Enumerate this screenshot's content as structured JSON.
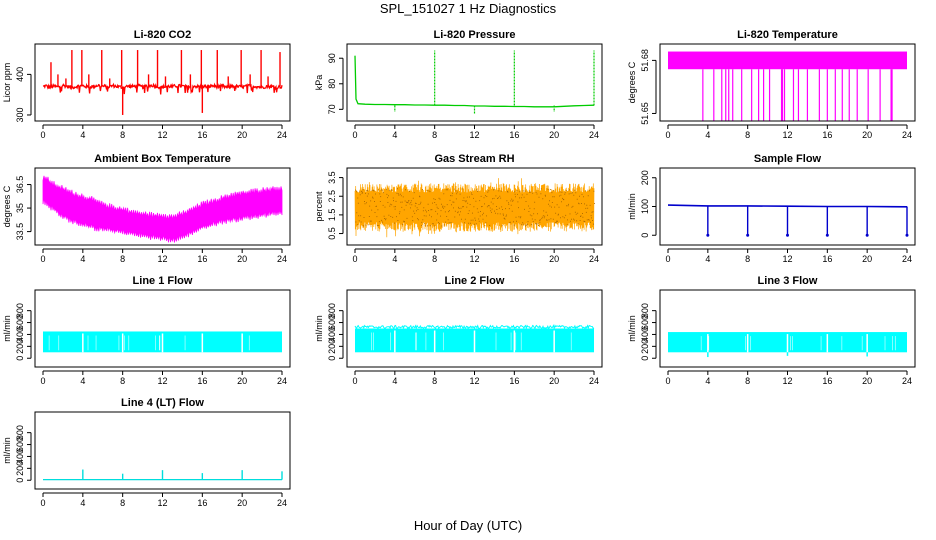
{
  "figure": {
    "title": "SPL_151027  1 Hz Diagnostics",
    "xlabel": "Hour of Day (UTC)"
  },
  "chart_data": [
    {
      "id": "co2",
      "type": "line",
      "title": "Li-820 CO2",
      "ylabel": "Licor ppm",
      "color": "#ff0000",
      "xlim": [
        0,
        24
      ],
      "xticks": [
        0,
        4,
        8,
        12,
        16,
        20,
        24
      ],
      "ylim": [
        295,
        465
      ],
      "yticks": [
        300,
        400
      ],
      "series": [
        {
          "x": [
            0,
            0.3,
            0.6,
            1,
            1.5,
            2,
            2.5,
            3,
            3.5,
            4,
            4.5,
            5,
            5.5,
            6,
            6.5,
            7,
            7.5,
            8,
            8.5,
            9,
            9.5,
            10,
            10.5,
            11,
            11.5,
            12,
            12.5,
            13,
            13.5,
            14,
            14.5,
            15,
            15.5,
            16,
            16.5,
            17,
            17.5,
            18,
            18.5,
            19,
            19.5,
            20,
            20.5,
            21,
            21.5,
            22,
            22.5,
            23,
            23.5,
            24
          ],
          "y": [
            370,
            372,
            368,
            371,
            369,
            373,
            370,
            368,
            371,
            372,
            369,
            370,
            373,
            371,
            369,
            372,
            370,
            368,
            371,
            370,
            372,
            369,
            371,
            373,
            370,
            368,
            371,
            370,
            372,
            371,
            369,
            372,
            370,
            371,
            369,
            372,
            370,
            371,
            368,
            372,
            370,
            369,
            371,
            372,
            370,
            368,
            371,
            370,
            369,
            370
          ]
        }
      ],
      "spikes": [
        [
          0.8,
          430
        ],
        [
          1.5,
          400
        ],
        [
          2.3,
          390
        ],
        [
          2.9,
          460
        ],
        [
          3.9,
          460
        ],
        [
          4.6,
          400
        ],
        [
          5.9,
          460
        ],
        [
          6.7,
          390
        ],
        [
          7.9,
          460
        ],
        [
          8.0,
          300
        ],
        [
          9.5,
          460
        ],
        [
          10.6,
          400
        ],
        [
          11.5,
          460
        ],
        [
          12.3,
          395
        ],
        [
          13.9,
          460
        ],
        [
          14.8,
          400
        ],
        [
          15.9,
          460
        ],
        [
          16.0,
          305
        ],
        [
          17.5,
          460
        ],
        [
          18.6,
          395
        ],
        [
          19.9,
          460
        ],
        [
          20.8,
          400
        ],
        [
          21.9,
          460
        ],
        [
          22.6,
          395
        ],
        [
          23.8,
          455
        ]
      ]
    },
    {
      "id": "pressure",
      "type": "line",
      "title": "Li-820 Pressure",
      "ylabel": "kPa",
      "color": "#00cc00",
      "xlim": [
        0,
        24
      ],
      "xticks": [
        0,
        4,
        8,
        12,
        16,
        20,
        24
      ],
      "ylim": [
        67,
        94
      ],
      "yticks": [
        70,
        80,
        90
      ],
      "series": [
        {
          "x": [
            0,
            0.1,
            0.3,
            1,
            2,
            3,
            4,
            5,
            6,
            7,
            8,
            9,
            10,
            11,
            12,
            13,
            14,
            15,
            16,
            17,
            18,
            19,
            20,
            21,
            22,
            23,
            24
          ],
          "y": [
            91,
            74,
            72.2,
            72,
            71.9,
            71.9,
            71.8,
            71.8,
            71.7,
            71.7,
            71.6,
            71.6,
            71.5,
            71.5,
            71.3,
            71.3,
            71.2,
            71.2,
            71.1,
            71.1,
            71.0,
            71.0,
            71.0,
            71.2,
            71.4,
            71.5,
            71.6
          ]
        }
      ],
      "spikes": [
        [
          8,
          93
        ],
        [
          16,
          93
        ],
        [
          24,
          93
        ],
        [
          4,
          69
        ],
        [
          12,
          68
        ],
        [
          20,
          69
        ]
      ]
    },
    {
      "id": "licor-temp",
      "type": "area",
      "title": "Li-820 Temperature",
      "ylabel": "degrees C",
      "color": "#ff00ff",
      "xlim": [
        0,
        24
      ],
      "xticks": [
        0,
        4,
        8,
        12,
        16,
        20,
        24
      ],
      "ylim": [
        51.648,
        51.687
      ],
      "yticks": [
        51.65,
        51.68
      ],
      "band": [
        51.675,
        51.685
      ],
      "drops": [
        3.5,
        4.6,
        5.4,
        5.8,
        6.1,
        6.5,
        7.4,
        8.4,
        9.1,
        9.6,
        10.2,
        11.4,
        11.5,
        11.7,
        12.6,
        13.1,
        14.0,
        15.2,
        16.0,
        16.8,
        17.5,
        18.2,
        19.0,
        20.1,
        21.3,
        22.4,
        22.5
      ]
    },
    {
      "id": "box-temp",
      "type": "area",
      "title": "Ambient Box Temperature",
      "ylabel": "degrees C",
      "color": "#ff00ff",
      "xlim": [
        0,
        24
      ],
      "xticks": [
        0,
        4,
        8,
        12,
        16,
        20,
        24
      ],
      "ylim": [
        32.9,
        37.3
      ],
      "yticks": [
        33.5,
        35.0,
        36.5
      ],
      "series": [
        {
          "name": "high",
          "x": [
            0,
            1,
            2,
            3,
            4,
            5,
            6,
            7,
            8,
            9,
            10,
            11,
            12,
            13,
            14,
            15,
            16,
            17,
            18,
            19,
            20,
            21,
            22,
            23,
            24
          ],
          "y": [
            36.9,
            36.4,
            36.1,
            35.8,
            35.6,
            35.4,
            35.1,
            34.9,
            34.8,
            34.6,
            34.5,
            34.4,
            34.4,
            34.3,
            34.5,
            34.8,
            35.1,
            35.3,
            35.5,
            35.7,
            35.8,
            35.9,
            36.0,
            36.1,
            36.1
          ]
        },
        {
          "name": "low",
          "x": [
            0,
            1,
            2,
            3,
            4,
            5,
            6,
            7,
            8,
            9,
            10,
            11,
            12,
            13,
            14,
            15,
            16,
            17,
            18,
            19,
            20,
            21,
            22,
            23,
            24
          ],
          "y": [
            35.6,
            35.1,
            34.6,
            34.3,
            34.1,
            33.9,
            33.8,
            33.7,
            33.6,
            33.5,
            33.4,
            33.3,
            33.2,
            33.1,
            33.3,
            33.6,
            33.9,
            34.1,
            34.3,
            34.4,
            34.5,
            34.6,
            34.7,
            34.8,
            34.9
          ]
        }
      ]
    },
    {
      "id": "rh",
      "type": "area",
      "title": "Gas Stream RH",
      "ylabel": "percent",
      "color": "#ffa500",
      "xlim": [
        0,
        24
      ],
      "xticks": [
        0,
        4,
        8,
        12,
        16,
        20,
        24
      ],
      "ylim": [
        0.1,
        3.8
      ],
      "yticks": [
        0.5,
        1.5,
        2.5,
        3.5
      ],
      "band": [
        0.6,
        3.2
      ],
      "extremes": [
        0.3,
        3.5
      ]
    },
    {
      "id": "sample-flow",
      "type": "line",
      "title": "Sample Flow",
      "ylabel": "ml/min",
      "color": "#0000cc",
      "xlim": [
        0,
        24
      ],
      "xticks": [
        0,
        4,
        8,
        12,
        16,
        20,
        24
      ],
      "ylim": [
        -20,
        220
      ],
      "yticks": [
        0,
        100,
        200
      ],
      "series": [
        {
          "x": [
            0,
            4,
            8,
            12,
            16,
            20,
            24
          ],
          "y": [
            105,
            102,
            102,
            101,
            100,
            100,
            99
          ]
        }
      ],
      "spikes": [
        [
          4,
          0
        ],
        [
          8,
          0
        ],
        [
          12,
          0
        ],
        [
          16,
          0
        ],
        [
          20,
          0
        ],
        [
          24,
          0
        ]
      ]
    },
    {
      "id": "line1",
      "type": "area",
      "title": "Line 1 Flow",
      "ylabel": "ml/min",
      "color": "#00ffff",
      "xlim": [
        0,
        24
      ],
      "xticks": [
        0,
        4,
        8,
        12,
        16,
        20,
        24
      ],
      "ylim": [
        -80,
        1080
      ],
      "yticks": [
        0,
        200,
        400,
        600,
        800
      ],
      "band": [
        100,
        450
      ],
      "gaps": [
        4,
        8,
        12,
        16,
        20
      ]
    },
    {
      "id": "line2",
      "type": "area",
      "title": "Line 2 Flow",
      "ylabel": "ml/min",
      "color": "#00ffff",
      "xlim": [
        0,
        24
      ],
      "xticks": [
        0,
        4,
        8,
        12,
        16,
        20,
        24
      ],
      "ylim": [
        -80,
        1080
      ],
      "yticks": [
        0,
        200,
        400,
        600,
        800
      ],
      "band": [
        100,
        500
      ],
      "gaps": [
        4,
        8,
        12,
        16,
        20
      ]
    },
    {
      "id": "line3",
      "type": "area",
      "title": "Line 3 Flow",
      "ylabel": "ml/min",
      "color": "#00ffff",
      "xlim": [
        0,
        24
      ],
      "xticks": [
        0,
        4,
        8,
        12,
        16,
        20,
        24
      ],
      "ylim": [
        -80,
        1080
      ],
      "yticks": [
        0,
        200,
        400,
        600,
        800
      ],
      "band": [
        100,
        440
      ],
      "gaps": [
        4,
        8,
        12,
        16,
        20
      ],
      "dips": [
        [
          4,
          20
        ],
        [
          12,
          40
        ],
        [
          20,
          30
        ]
      ]
    },
    {
      "id": "line4",
      "type": "line",
      "title": "Line 4 (LT) Flow",
      "ylabel": "ml/min",
      "color": "#00dddd",
      "xlim": [
        0,
        24
      ],
      "xticks": [
        0,
        4,
        8,
        12,
        16,
        20,
        24
      ],
      "ylim": [
        -80,
        1080
      ],
      "yticks": [
        0,
        200,
        400,
        600,
        800
      ],
      "series": [
        {
          "x": [
            0,
            24
          ],
          "y": [
            10,
            10
          ]
        }
      ],
      "spikes": [
        [
          4,
          180
        ],
        [
          8,
          110
        ],
        [
          12,
          170
        ],
        [
          16,
          120
        ],
        [
          20,
          170
        ],
        [
          24,
          150
        ]
      ]
    }
  ]
}
